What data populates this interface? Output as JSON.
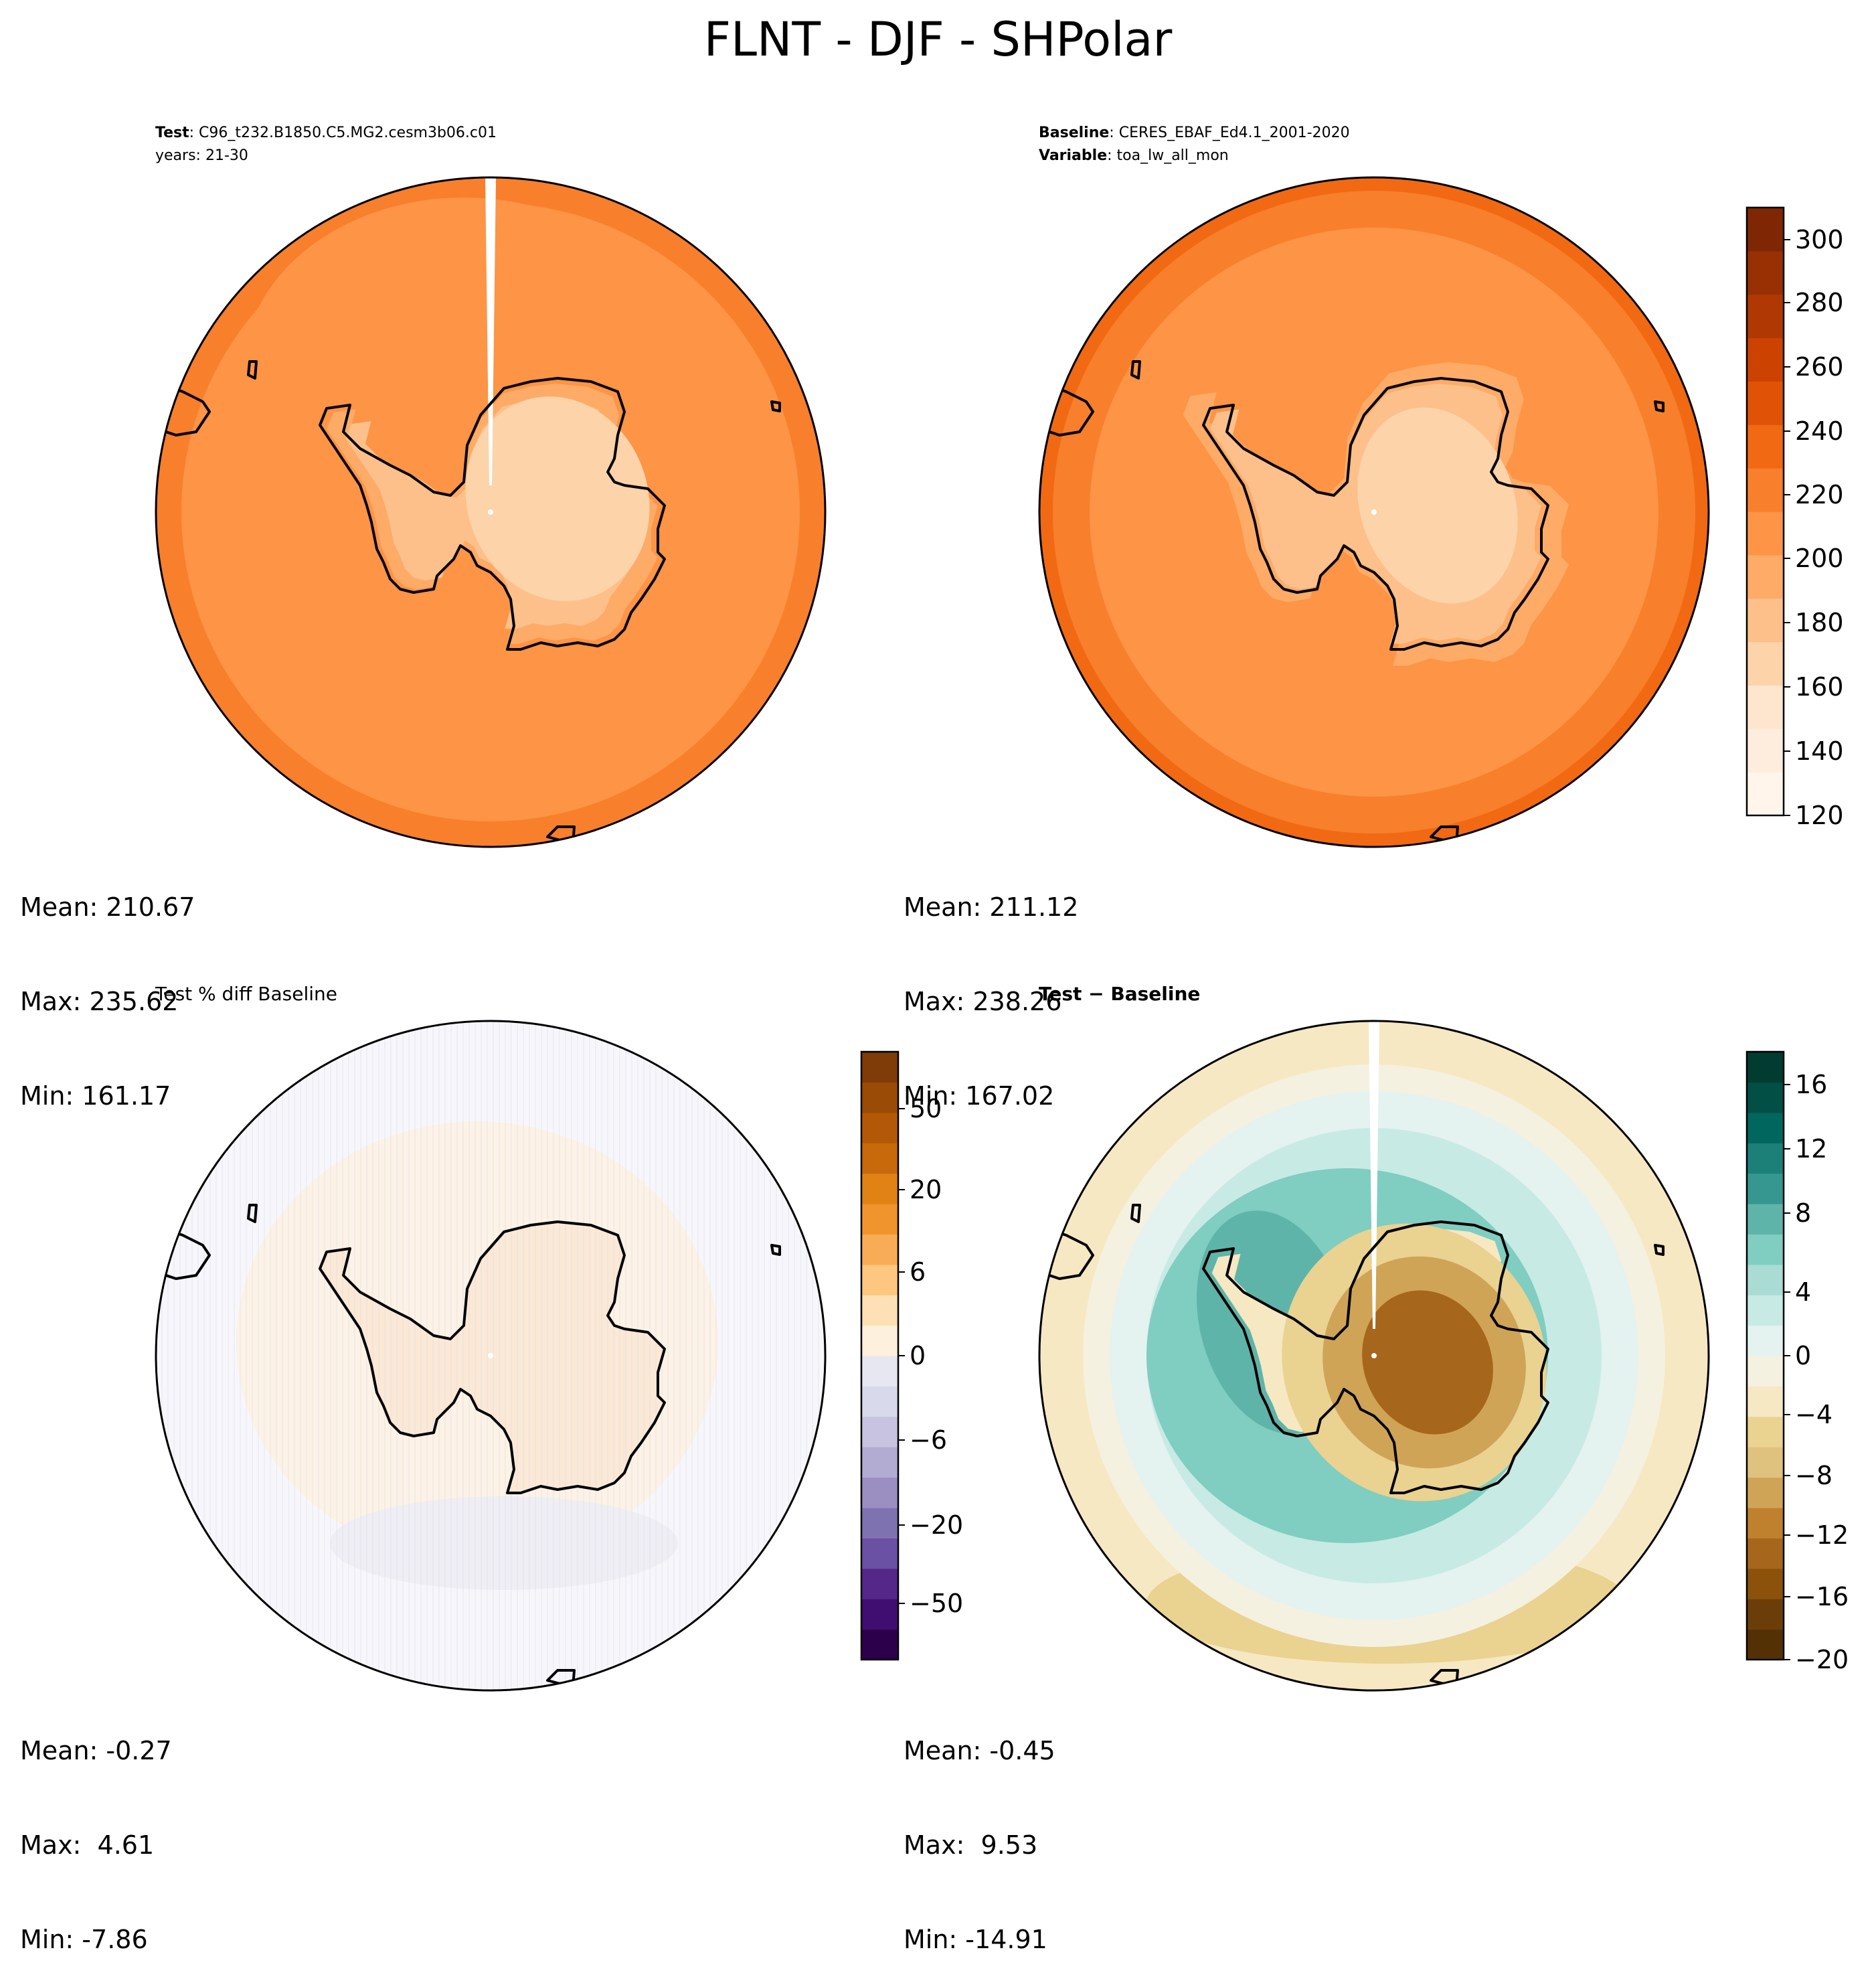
{
  "title": "FLNT - DJF - SHPolar",
  "panels": {
    "test": {
      "label": "Test",
      "name": "C96_t232.B1850.C5.MG2.cesm3b06.c01",
      "years": "years: 21-30",
      "stats": {
        "mean": "Mean: 210.67",
        "max": "Max: 235.62",
        "min": "Min: 161.17"
      }
    },
    "baseline": {
      "label": "Baseline",
      "name": "CERES_EBAF_Ed4.1_2001-2020",
      "var_label": "Variable",
      "var": "toa_lw_all_mon",
      "stats": {
        "mean": "Mean: 211.12",
        "max": "Max: 238.26",
        "min": "Min: 167.02"
      }
    },
    "pct_diff": {
      "title": "Test % diff Baseline",
      "stats": {
        "mean": "Mean: -0.27",
        "max": "Max:  4.61",
        "min": "Min: -7.86"
      }
    },
    "diff": {
      "title": "Test − Baseline",
      "stats": {
        "mean": "Mean: -0.45",
        "max": "Max:  9.53",
        "min": "Min: -14.91"
      }
    }
  },
  "colorbars": {
    "abs": {
      "ticks": [
        "120",
        "140",
        "160",
        "180",
        "200",
        "220",
        "240",
        "260",
        "280",
        "300"
      ],
      "colors": [
        "#fff5eb",
        "#feeddc",
        "#fee6ce",
        "#fdd3a9",
        "#fdc08b",
        "#fdab67",
        "#fd9446",
        "#f87f2c",
        "#f16913",
        "#e05206",
        "#cc4301",
        "#b03903",
        "#983003",
        "#7f2704"
      ]
    },
    "pct": {
      "ticks": [
        "−50",
        "−20",
        "−6",
        "0",
        "6",
        "20",
        "50"
      ],
      "colors": [
        "#2d004b",
        "#3f0e70",
        "#542788",
        "#6a51a3",
        "#7f72b1",
        "#9b8fc1",
        "#b2abd2",
        "#c7c3e0",
        "#d8daeb",
        "#e7e7f1",
        "#fdf0dd",
        "#fee0b6",
        "#fdc780",
        "#f9ac56",
        "#f0952d",
        "#e08214",
        "#c8690c",
        "#b35806",
        "#9a4b06",
        "#7f3b08"
      ]
    },
    "diff": {
      "ticks": [
        "−20",
        "−16",
        "−12",
        "−8",
        "−4",
        "0",
        "4",
        "8",
        "12",
        "16"
      ],
      "colors": [
        "#543005",
        "#6b3e09",
        "#8c510a",
        "#a6661b",
        "#bf812d",
        "#cfa456",
        "#dfc27d",
        "#ead291",
        "#f6e8c3",
        "#f5f1e0",
        "#e4f2f0",
        "#c7eae5",
        "#aadcd3",
        "#80cdc1",
        "#5fb4a9",
        "#35978f",
        "#1c8079",
        "#01665e",
        "#014f45",
        "#003c30"
      ]
    }
  }
}
